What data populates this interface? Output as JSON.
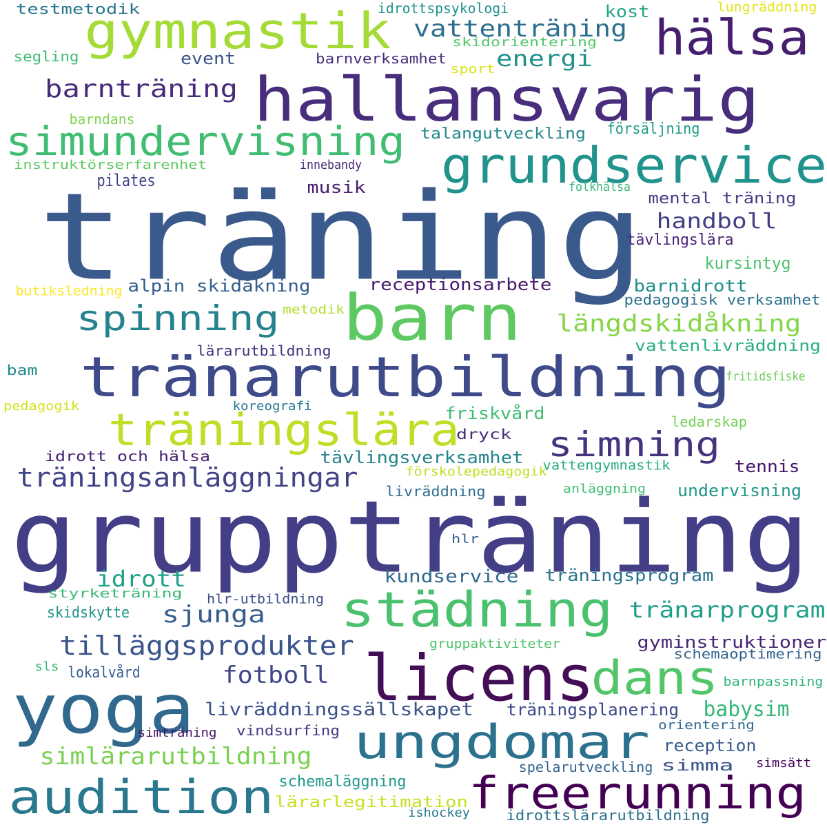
{
  "words": [
    {
      "text": "träning",
      "color": "#3b5a8c"
    },
    {
      "text": "gruppträning",
      "color": "#433e85"
    },
    {
      "text": "hallansvarig",
      "color": "#472d7b"
    },
    {
      "text": "barn",
      "color": "#5ec962"
    },
    {
      "text": "tränarutbildning",
      "color": "#3e4a89"
    },
    {
      "text": "yoga",
      "color": "#30688e"
    },
    {
      "text": "licens",
      "color": "#440e57"
    },
    {
      "text": "gymnastik",
      "color": "#a5db36"
    },
    {
      "text": "grundservice",
      "color": "#20938c"
    },
    {
      "text": "simundervisning",
      "color": "#40bd72"
    },
    {
      "text": "hälsa",
      "color": "#461e6f"
    },
    {
      "text": "träningslära",
      "color": "#bddf26"
    },
    {
      "text": "städning",
      "color": "#4ac16d"
    },
    {
      "text": "audition",
      "color": "#2a788e"
    },
    {
      "text": "ungdomar",
      "color": "#2c728e"
    },
    {
      "text": "freerunning",
      "color": "#440154"
    },
    {
      "text": "dans",
      "color": "#52c569"
    },
    {
      "text": "spinning",
      "color": "#26828e"
    },
    {
      "text": "simning",
      "color": "#46327e"
    },
    {
      "text": "träningsanläggningar",
      "color": "#414487"
    },
    {
      "text": "barnträning",
      "color": "#472a7a"
    },
    {
      "text": "vattenträning",
      "color": "#2d708e"
    },
    {
      "text": "energi",
      "color": "#21918c"
    },
    {
      "text": "längdskidåkning",
      "color": "#86d549"
    },
    {
      "text": "tilläggsprodukter",
      "color": "#3a548c"
    },
    {
      "text": "simlärarutbildning",
      "color": "#7ad151"
    },
    {
      "text": "sjunga",
      "color": "#365d8d"
    },
    {
      "text": "tränarprogram",
      "color": "#1f9f88"
    },
    {
      "text": "fotboll",
      "color": "#404688"
    },
    {
      "text": "idrott",
      "color": "#1fa088"
    },
    {
      "text": "handboll",
      "color": "#423f85"
    },
    {
      "text": "livräddningssällskapet",
      "color": "#3b528b"
    },
    {
      "text": "babysim",
      "color": "#35b779"
    },
    {
      "text": "kundservice",
      "color": "#31688e"
    },
    {
      "text": "träningsprogram",
      "color": "#2b748e"
    },
    {
      "text": "gyminstruktioner",
      "color": "#482576"
    },
    {
      "text": "träningsplanering",
      "color": "#3e4989"
    },
    {
      "text": "reception",
      "color": "#375b8d"
    },
    {
      "text": "receptionsarbete",
      "color": "#481a6c"
    },
    {
      "text": "tävlingsverksamhet",
      "color": "#25838e"
    },
    {
      "text": "undervisning",
      "color": "#1f968b"
    },
    {
      "text": "alpin skidåkning",
      "color": "#355f8d"
    },
    {
      "text": "barnidrott",
      "color": "#218f8d"
    },
    {
      "text": "kursintyg",
      "color": "#4cc26c"
    },
    {
      "text": "friskvård",
      "color": "#3fbc73"
    },
    {
      "text": "tennis",
      "color": "#481467"
    },
    {
      "text": "pilates",
      "color": "#414287"
    },
    {
      "text": "musik",
      "color": "#481c6e"
    },
    {
      "text": "kost",
      "color": "#22a884"
    },
    {
      "text": "event",
      "color": "#3b528b"
    },
    {
      "text": "talangutveckling",
      "color": "#24878e"
    },
    {
      "text": "försäljning",
      "color": "#1f9e89"
    },
    {
      "text": "mental träning",
      "color": "#433e85"
    },
    {
      "text": "tävlingslära",
      "color": "#482475"
    },
    {
      "text": "pedagogisk verksamhet",
      "color": "#2c728e"
    },
    {
      "text": "vattenlivräddning",
      "color": "#29af7f"
    },
    {
      "text": "skidskytte",
      "color": "#1f948c"
    },
    {
      "text": "lokalvård",
      "color": "#355e8d"
    },
    {
      "text": "simma",
      "color": "#3a548c"
    },
    {
      "text": "schemaläggning",
      "color": "#1f9a8a"
    },
    {
      "text": "lärarlegitimation",
      "color": "#c8e020"
    },
    {
      "text": "spelarutveckling",
      "color": "#33638d"
    },
    {
      "text": "idrottslärarutbildning",
      "color": "#2d708e"
    },
    {
      "text": "testmetodik",
      "color": "#2a768e"
    },
    {
      "text": "idrottspsykologi",
      "color": "#20928c"
    },
    {
      "text": "lungräddning",
      "color": "#e5e419"
    },
    {
      "text": "skidorientering",
      "color": "#52c569"
    },
    {
      "text": "segling",
      "color": "#3dbc74"
    },
    {
      "text": "barnverksamhet",
      "color": "#472c7a"
    },
    {
      "text": "sport",
      "color": "#dde318"
    },
    {
      "text": "barndans",
      "color": "#7fd34e"
    },
    {
      "text": "instruktörserfarenhet",
      "color": "#5ec962"
    },
    {
      "text": "innebandy",
      "color": "#482878"
    },
    {
      "text": "folkhälsa",
      "color": "#35b779"
    },
    {
      "text": "butiksledning",
      "color": "#fde725"
    },
    {
      "text": "metodik",
      "color": "#b5de2b"
    },
    {
      "text": "lärarutbildning",
      "color": "#46337e"
    },
    {
      "text": "bam",
      "color": "#23898e"
    },
    {
      "text": "fritidsfiske",
      "color": "#6ccd5a"
    },
    {
      "text": "pedagogik",
      "color": "#d2e21b"
    },
    {
      "text": "koreografi",
      "color": "#2a788e"
    },
    {
      "text": "ledarskap",
      "color": "#73d056"
    },
    {
      "text": "dryck",
      "color": "#472f7d"
    },
    {
      "text": "idrott och hälsa",
      "color": "#482173"
    },
    {
      "text": "förskolepedagogik",
      "color": "#c0df25"
    },
    {
      "text": "vattengymnastik",
      "color": "#28ae80"
    },
    {
      "text": "livräddning",
      "color": "#2e6e8e"
    },
    {
      "text": "anläggning",
      "color": "#3fbc73"
    },
    {
      "text": "hlr",
      "color": "#355f8d"
    },
    {
      "text": "styrketräning",
      "color": "#3aba76"
    },
    {
      "text": "hlr-utbildning",
      "color": "#3d4e8a"
    },
    {
      "text": "gruppaktiviteter",
      "color": "#4ec36b"
    },
    {
      "text": "schemaoptimering",
      "color": "#33628d"
    },
    {
      "text": "sls",
      "color": "#3bbb75"
    },
    {
      "text": "barnpassning",
      "color": "#2fb47c"
    },
    {
      "text": "orientering",
      "color": "#31678e"
    },
    {
      "text": "simträning",
      "color": "#471365"
    },
    {
      "text": "vindsurfing",
      "color": "#443983"
    },
    {
      "text": "simsätt",
      "color": "#450559"
    },
    {
      "text": "ishockey",
      "color": "#2a788e"
    }
  ]
}
